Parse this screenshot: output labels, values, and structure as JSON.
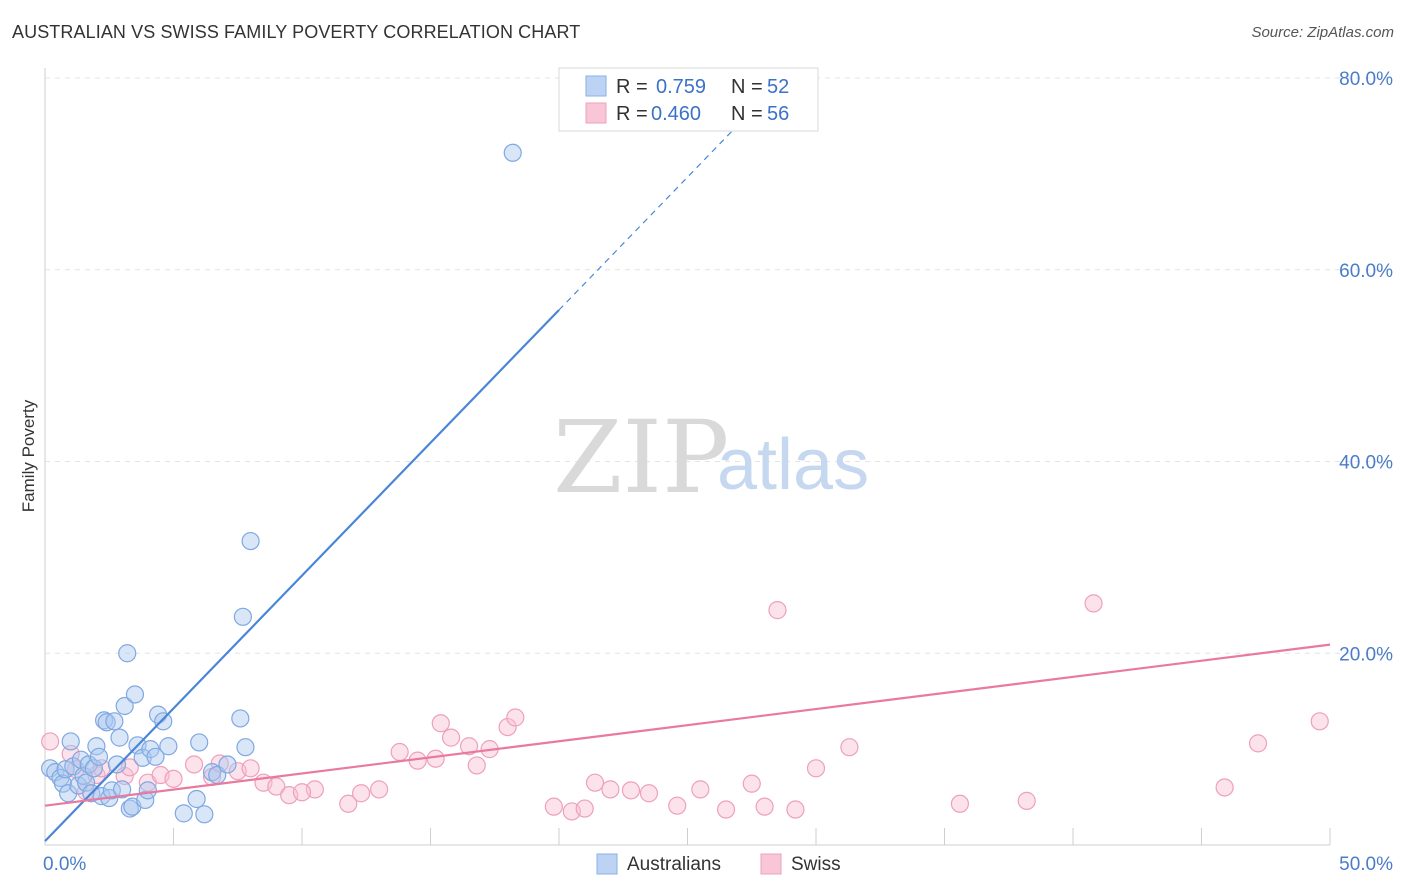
{
  "header": {
    "title": "AUSTRALIAN VS SWISS FAMILY POVERTY CORRELATION CHART",
    "source": "Source: ZipAtlas.com"
  },
  "watermark": {
    "part1": "ZIP",
    "part2": "atlas"
  },
  "legend": {
    "rows": [
      {
        "r_label": "R =",
        "r_value": "0.759",
        "n_label": "N =",
        "n_value": "52"
      },
      {
        "r_label": "R =",
        "r_value": "0.460",
        "n_label": "N =",
        "n_value": "56"
      }
    ]
  },
  "bottom_legend": {
    "australians": "Australians",
    "swiss": "Swiss"
  },
  "chart_data": {
    "type": "scatter",
    "title": "AUSTRALIAN VS SWISS FAMILY POVERTY CORRELATION CHART",
    "xlabel": "",
    "ylabel": "Family Poverty",
    "xlim": [
      0,
      50
    ],
    "ylim": [
      0,
      80
    ],
    "x_tick_labels": [
      "0.0%",
      "50.0%"
    ],
    "y_ticks": [
      20,
      40,
      60,
      80
    ],
    "y_tick_labels": [
      "20.0%",
      "40.0%",
      "60.0%",
      "80.0%"
    ],
    "colors": {
      "australians": "#4a86d8",
      "swiss": "#e87aa0",
      "value_text": "#3b72c8"
    },
    "series": [
      {
        "name": "Australians",
        "r": 0.759,
        "n": 52,
        "trend": {
          "x0": 0,
          "y0": 0.4,
          "x1": 20,
          "y1": 55.8,
          "dash_x1": 27,
          "dash_y1": 75.2
        },
        "points": [
          [
            0.2,
            8.0
          ],
          [
            0.4,
            7.6
          ],
          [
            0.6,
            7.0
          ],
          [
            0.7,
            6.4
          ],
          [
            0.8,
            7.9
          ],
          [
            0.9,
            5.4
          ],
          [
            1.0,
            10.8
          ],
          [
            1.1,
            8.2
          ],
          [
            1.3,
            6.2
          ],
          [
            1.4,
            8.9
          ],
          [
            1.5,
            7.2
          ],
          [
            1.6,
            6.5
          ],
          [
            1.7,
            8.4
          ],
          [
            1.8,
            5.4
          ],
          [
            1.9,
            8.0
          ],
          [
            2.0,
            10.3
          ],
          [
            2.1,
            9.2
          ],
          [
            2.2,
            5.1
          ],
          [
            2.3,
            13.0
          ],
          [
            2.4,
            12.8
          ],
          [
            2.5,
            4.9
          ],
          [
            2.6,
            5.7
          ],
          [
            2.7,
            12.9
          ],
          [
            2.8,
            8.4
          ],
          [
            2.9,
            11.2
          ],
          [
            3.0,
            5.8
          ],
          [
            3.1,
            14.5
          ],
          [
            3.2,
            20.0
          ],
          [
            3.3,
            3.8
          ],
          [
            3.4,
            4.0
          ],
          [
            3.5,
            15.7
          ],
          [
            3.6,
            10.4
          ],
          [
            3.8,
            9.1
          ],
          [
            3.9,
            4.7
          ],
          [
            4.0,
            5.7
          ],
          [
            4.1,
            10.0
          ],
          [
            4.3,
            9.2
          ],
          [
            4.4,
            13.6
          ],
          [
            4.6,
            12.9
          ],
          [
            4.8,
            10.3
          ],
          [
            5.4,
            3.3
          ],
          [
            5.9,
            4.8
          ],
          [
            6.0,
            10.7
          ],
          [
            6.2,
            3.2
          ],
          [
            6.5,
            7.6
          ],
          [
            6.7,
            7.3
          ],
          [
            7.1,
            8.4
          ],
          [
            7.6,
            13.2
          ],
          [
            7.7,
            23.8
          ],
          [
            7.8,
            10.2
          ],
          [
            8.0,
            31.7
          ],
          [
            18.2,
            72.2
          ]
        ]
      },
      {
        "name": "Swiss",
        "r": 0.46,
        "n": 56,
        "trend": {
          "x0": 0,
          "y0": 4.1,
          "x1": 50,
          "y1": 20.9
        },
        "points": [
          [
            0.2,
            10.8
          ],
          [
            1.0,
            9.5
          ],
          [
            1.2,
            7.9
          ],
          [
            1.6,
            5.6
          ],
          [
            2.0,
            7.3
          ],
          [
            2.2,
            8.0
          ],
          [
            3.1,
            7.2
          ],
          [
            3.3,
            8.1
          ],
          [
            4.0,
            6.5
          ],
          [
            4.5,
            7.3
          ],
          [
            5.0,
            6.9
          ],
          [
            5.8,
            8.4
          ],
          [
            6.5,
            7.1
          ],
          [
            6.8,
            8.5
          ],
          [
            7.5,
            7.7
          ],
          [
            8.0,
            8.0
          ],
          [
            8.5,
            6.5
          ],
          [
            9.0,
            6.1
          ],
          [
            9.5,
            5.2
          ],
          [
            10.5,
            5.8
          ],
          [
            10.0,
            5.5
          ],
          [
            11.8,
            4.3
          ],
          [
            12.3,
            5.4
          ],
          [
            13.0,
            5.8
          ],
          [
            13.8,
            9.7
          ],
          [
            14.5,
            8.8
          ],
          [
            15.2,
            9.0
          ],
          [
            15.4,
            12.7
          ],
          [
            15.8,
            11.2
          ],
          [
            16.5,
            10.3
          ],
          [
            16.8,
            8.3
          ],
          [
            17.3,
            10.0
          ],
          [
            18.0,
            12.3
          ],
          [
            18.3,
            13.3
          ],
          [
            19.8,
            4.0
          ],
          [
            20.5,
            3.5
          ],
          [
            21.0,
            3.8
          ],
          [
            21.4,
            6.5
          ],
          [
            22.0,
            5.8
          ],
          [
            22.8,
            5.7
          ],
          [
            23.5,
            5.4
          ],
          [
            24.6,
            4.1
          ],
          [
            25.5,
            5.8
          ],
          [
            26.5,
            3.7
          ],
          [
            27.5,
            6.4
          ],
          [
            28.0,
            4.0
          ],
          [
            28.5,
            24.5
          ],
          [
            29.2,
            3.7
          ],
          [
            30.0,
            8.0
          ],
          [
            31.3,
            10.2
          ],
          [
            35.6,
            4.3
          ],
          [
            38.2,
            4.6
          ],
          [
            40.8,
            25.2
          ],
          [
            45.9,
            6.0
          ],
          [
            47.2,
            10.6
          ],
          [
            49.6,
            12.9
          ]
        ]
      }
    ]
  }
}
